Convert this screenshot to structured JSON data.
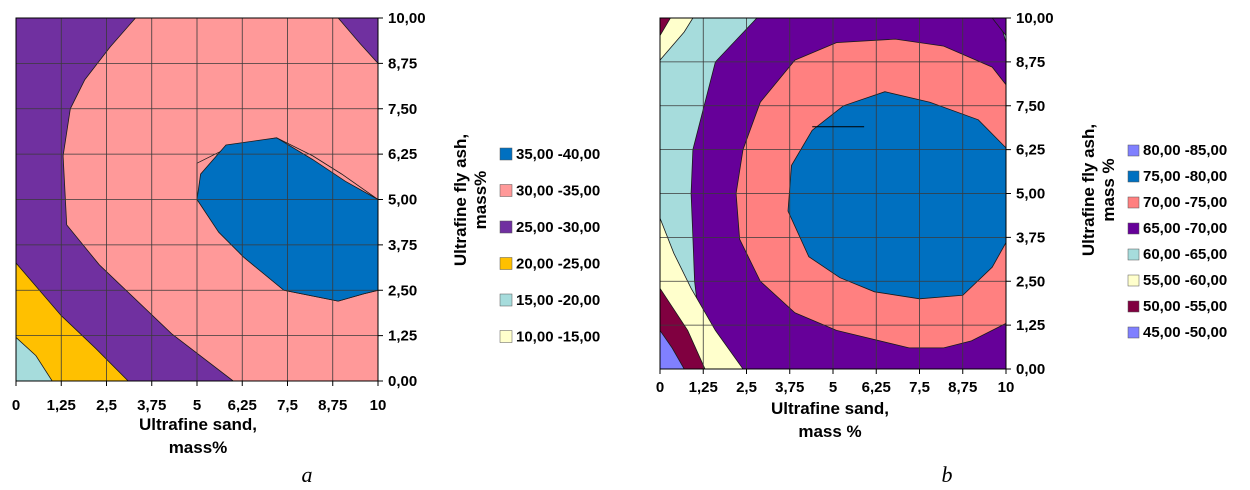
{
  "chart_data": [
    {
      "type": "contour",
      "panel_label": "a",
      "x": [
        0,
        1.25,
        2.5,
        3.75,
        5,
        6.25,
        7.5,
        8.75,
        10
      ],
      "y": [
        0,
        1.25,
        2.5,
        3.75,
        5,
        6.25,
        7.5,
        8.75,
        10
      ],
      "xtick_labels": [
        "0",
        "1,25",
        "2,5",
        "3,75",
        "5",
        "6,25",
        "7,5",
        "8,75",
        "10"
      ],
      "ytick_labels": [
        "0,00",
        "1,25",
        "2,50",
        "3,75",
        "5,00",
        "6,25",
        "7,50",
        "8,75",
        "10,00"
      ],
      "xlim": [
        0,
        10
      ],
      "ylim": [
        0,
        10
      ],
      "xlabel": [
        "Ultrafine sand,",
        "mass%"
      ],
      "ylabel": [
        "Ultrafine fly ash,",
        "mass%"
      ],
      "grid": true,
      "legend_position": "right",
      "legend": [
        {
          "label": "35,00 -40,00",
          "color": "#0070C0",
          "range": [
            35,
            40
          ]
        },
        {
          "label": "30,00 -35,00",
          "color": "#FF9999",
          "range": [
            30,
            35
          ]
        },
        {
          "label": "25,00 -30,00",
          "color": "#7030A0",
          "range": [
            25,
            30
          ]
        },
        {
          "label": "20,00 -25,00",
          "color": "#FFC000",
          "range": [
            20,
            25
          ]
        },
        {
          "label": "15,00 -20,00",
          "color": "#A6DCDC",
          "range": [
            15,
            20
          ]
        },
        {
          "label": "10,00 -15,00",
          "color": "#FFFFCC",
          "range": [
            10,
            15
          ]
        }
      ],
      "regions": [
        {
          "range": [
            25,
            30
          ],
          "color": "#7030A0",
          "boundary": [
            [
              0,
              0
            ],
            [
              0,
              10
            ],
            [
              10,
              10
            ],
            [
              10,
              0
            ]
          ]
        },
        {
          "range": [
            30,
            35
          ],
          "color": "#FF9999",
          "boundary": [
            [
              6,
              0
            ],
            [
              4.3,
              1.3
            ],
            [
              2.3,
              3.2
            ],
            [
              1.4,
              4.3
            ],
            [
              1.3,
              6.2
            ],
            [
              1.5,
              7.5
            ],
            [
              1.9,
              8.3
            ],
            [
              2.6,
              9.2
            ],
            [
              3.3,
              10
            ],
            [
              8.9,
              10
            ],
            [
              9.5,
              9.3
            ],
            [
              10,
              8.75
            ],
            [
              10,
              2.5
            ],
            [
              9.6,
              2.4
            ],
            [
              8.9,
              2.2
            ],
            [
              7.4,
              2.5
            ],
            [
              6.2,
              3.5
            ],
            [
              5,
              5
            ],
            [
              5,
              6
            ],
            [
              5.8,
              6.4
            ],
            [
              7.2,
              6.7
            ],
            [
              8.2,
              6.2
            ],
            [
              9,
              5.7
            ],
            [
              10,
              5
            ],
            [
              10,
              0
            ]
          ]
        },
        {
          "range": [
            35,
            40
          ],
          "color": "#0070C0",
          "boundary": [
            [
              5,
              5
            ],
            [
              5.1,
              5.7
            ],
            [
              5.8,
              6.5
            ],
            [
              7.2,
              6.7
            ],
            [
              8.2,
              6.1
            ],
            [
              9.1,
              5.5
            ],
            [
              10,
              5
            ],
            [
              10,
              2.5
            ],
            [
              9.6,
              2.4
            ],
            [
              8.9,
              2.2
            ],
            [
              7.4,
              2.5
            ],
            [
              6.3,
              3.4
            ],
            [
              5.6,
              4.1
            ]
          ]
        },
        {
          "range": [
            20,
            25
          ],
          "color": "#FFC000",
          "boundary": [
            [
              0,
              0
            ],
            [
              0,
              3.25
            ],
            [
              1.25,
              1.8
            ],
            [
              2.2,
              0.9
            ],
            [
              3.1,
              0
            ]
          ]
        },
        {
          "range": [
            15,
            20
          ],
          "color": "#A6DCDC",
          "boundary": [
            [
              0,
              0
            ],
            [
              0,
              1.2
            ],
            [
              0.55,
              0.7
            ],
            [
              1,
              0
            ]
          ]
        }
      ]
    },
    {
      "type": "contour",
      "panel_label": "b",
      "x": [
        0,
        1.25,
        2.5,
        3.75,
        5,
        6.25,
        7.5,
        8.75,
        10
      ],
      "y": [
        0,
        1.25,
        2.5,
        3.75,
        5,
        6.25,
        7.5,
        8.75,
        10
      ],
      "xtick_labels": [
        "0",
        "1,25",
        "2,5",
        "3,75",
        "5",
        "6,25",
        "7,5",
        "8,75",
        "10"
      ],
      "ytick_labels": [
        "0,00",
        "1,25",
        "2,50",
        "3,75",
        "5,00",
        "6,25",
        "7,50",
        "8,75",
        "10,00"
      ],
      "xlim": [
        0,
        10
      ],
      "ylim": [
        0,
        10
      ],
      "xlabel": [
        "Ultrafine sand,",
        "mass %"
      ],
      "ylabel": [
        "Ultrafine fly ash,",
        "mass %"
      ],
      "grid": true,
      "legend_position": "right",
      "legend": [
        {
          "label": "80,00 -85,00",
          "color": "#8080FF",
          "range": [
            80,
            85
          ]
        },
        {
          "label": "75,00 -80,00",
          "color": "#0070C0",
          "range": [
            75,
            80
          ]
        },
        {
          "label": "70,00 -75,00",
          "color": "#FF8080",
          "range": [
            70,
            75
          ]
        },
        {
          "label": "65,00 -70,00",
          "color": "#660099",
          "range": [
            65,
            70
          ]
        },
        {
          "label": "60,00 -65,00",
          "color": "#A6DCDC",
          "range": [
            60,
            65
          ]
        },
        {
          "label": "55,00 -60,00",
          "color": "#FFFFCC",
          "range": [
            55,
            60
          ]
        },
        {
          "label": "50,00 -55,00",
          "color": "#800040",
          "range": [
            50,
            55
          ]
        },
        {
          "label": "45,00 -50,00",
          "color": "#8080FF",
          "range": [
            45,
            50
          ]
        }
      ],
      "regions": [
        {
          "range": [
            60,
            65
          ],
          "color": "#A6DCDC",
          "boundary": [
            [
              0,
              0
            ],
            [
              0,
              10
            ],
            [
              10,
              10
            ],
            [
              10,
              0
            ]
          ]
        },
        {
          "range": [
            65,
            70
          ],
          "color": "#660099",
          "boundary": [
            [
              1.3,
              0
            ],
            [
              3.5,
              0
            ],
            [
              7,
              0
            ],
            [
              10,
              0
            ],
            [
              10,
              9.3
            ],
            [
              9.8,
              10
            ],
            [
              2.8,
              10
            ],
            [
              1.6,
              8.75
            ],
            [
              0.95,
              6.25
            ],
            [
              0.9,
              5
            ],
            [
              0.95,
              3.75
            ],
            [
              1,
              2.5
            ],
            [
              1.15,
              1.25
            ]
          ]
        },
        {
          "range": [
            70,
            75
          ],
          "color": "#FF8080",
          "boundary": [
            [
              5.1,
              1.1
            ],
            [
              7.2,
              0.6
            ],
            [
              8.2,
              0.6
            ],
            [
              9,
              0.8
            ],
            [
              10,
              1.3
            ],
            [
              10,
              8.1
            ],
            [
              9.6,
              8.6
            ],
            [
              8.2,
              9.2
            ],
            [
              6.8,
              9.4
            ],
            [
              5.1,
              9.3
            ],
            [
              3.9,
              8.8
            ],
            [
              2.9,
              7.6
            ],
            [
              2.4,
              6.25
            ],
            [
              2.2,
              5
            ],
            [
              2.3,
              3.7
            ],
            [
              2.9,
              2.5
            ],
            [
              3.9,
              1.6
            ]
          ]
        },
        {
          "range": [
            75,
            80
          ],
          "color": "#0070C0",
          "boundary": [
            [
              6.2,
              2.2
            ],
            [
              7.5,
              2
            ],
            [
              8.75,
              2.1
            ],
            [
              9.6,
              2.9
            ],
            [
              10,
              3.6
            ],
            [
              10,
              6.3
            ],
            [
              9.2,
              7.1
            ],
            [
              7.8,
              7.6
            ],
            [
              6.5,
              7.9
            ],
            [
              5.3,
              7.5
            ],
            [
              4.4,
              6.8
            ],
            [
              3.8,
              5.8
            ],
            [
              3.7,
              4.5
            ],
            [
              4.3,
              3.2
            ],
            [
              5.2,
              2.6
            ]
          ]
        },
        {
          "range": [
            55,
            60
          ],
          "color": "#FFFFCC",
          "boundary": [
            [
              0,
              0
            ],
            [
              0,
              4.3
            ],
            [
              0.4,
              3.3
            ],
            [
              0.9,
              2.3
            ],
            [
              1.6,
              1.1
            ],
            [
              2.4,
              0
            ]
          ]
        },
        {
          "range": [
            50,
            55
          ],
          "color": "#800040",
          "boundary": [
            [
              0,
              0
            ],
            [
              0,
              2.3
            ],
            [
              0.8,
              1.1
            ],
            [
              1.3,
              0
            ]
          ]
        },
        {
          "range": [
            45,
            50
          ],
          "color": "#8080FF",
          "boundary": [
            [
              0,
              0
            ],
            [
              0,
              1.1
            ],
            [
              0.35,
              0.6
            ],
            [
              0.7,
              0
            ]
          ]
        },
        {
          "range": [
            55,
            60
          ],
          "color": "#FFFFCC",
          "boundary": [
            [
              0,
              10
            ],
            [
              0,
              8.8
            ],
            [
              0.7,
              9.6
            ],
            [
              0.95,
              10
            ]
          ]
        },
        {
          "range": [
            50,
            55
          ],
          "color": "#800040",
          "boundary": [
            [
              0,
              10
            ],
            [
              0,
              9.5
            ],
            [
              0.3,
              10
            ]
          ]
        },
        {
          "range": [
            65,
            70
          ],
          "color": "#660099",
          "boundary": [
            [
              10,
              10
            ],
            [
              10,
              9.5
            ],
            [
              9.6,
              10
            ]
          ]
        }
      ],
      "annotations": [
        {
          "type": "segment",
          "from": [
            4.4,
            6.9
          ],
          "to": [
            5.9,
            6.9
          ]
        }
      ]
    }
  ]
}
